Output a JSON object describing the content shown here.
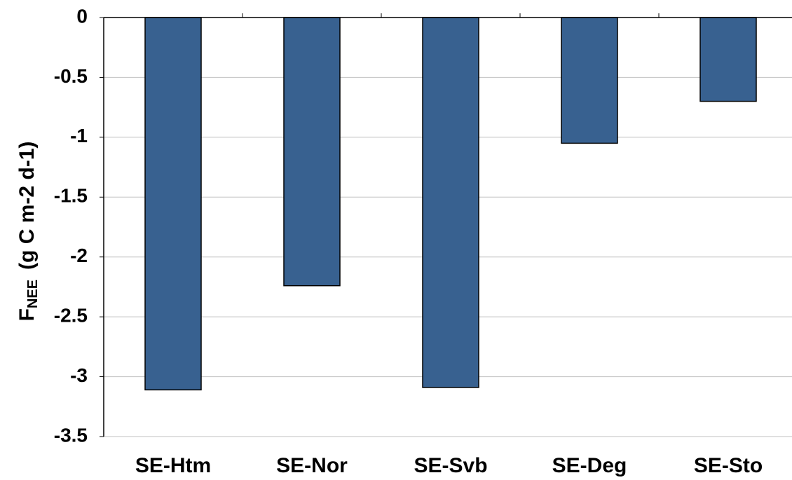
{
  "chart_data": {
    "type": "bar",
    "ylabel": {
      "main": "F",
      "sub": "NEE",
      "unit": "(g C m-2 d-1)"
    },
    "categories": [
      "SE-Htm",
      "SE-Nor",
      "SE-Svb",
      "SE-Deg",
      "SE-Sto"
    ],
    "values": [
      -3.11,
      -2.24,
      -3.09,
      -1.05,
      -0.7
    ],
    "color": "#386190",
    "ylim": [
      -3.5,
      0
    ],
    "yticks": [
      0,
      -0.5,
      -1,
      -1.5,
      -2,
      -2.5,
      -3,
      -3.5
    ],
    "grid": true
  }
}
